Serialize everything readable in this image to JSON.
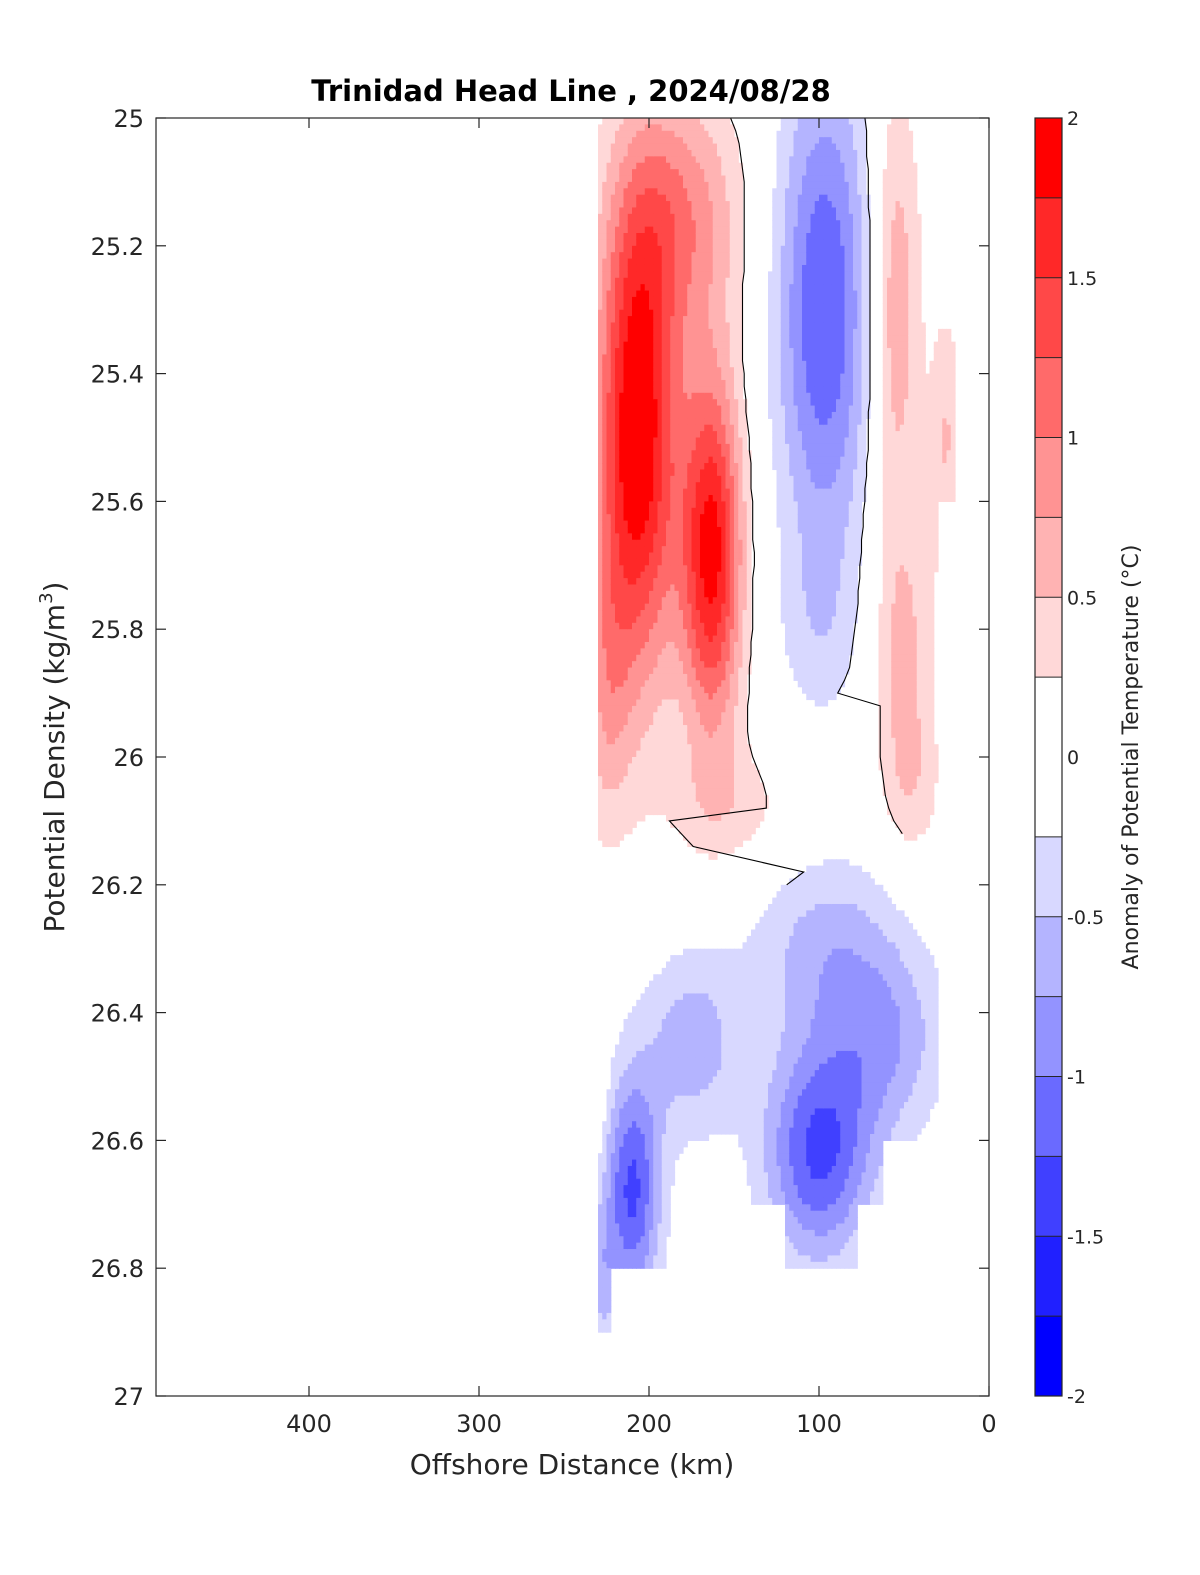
{
  "chart_data": {
    "type": "heatmap",
    "subtype": "filled-contour",
    "title": "Trinidad Head Line , 2024/08/28",
    "xlabel": "Offshore Distance (km)",
    "ylabel_main": "Potential Density (kg/m",
    "ylabel_sup": "3",
    "ylabel_close": ")",
    "xlim": [
      490,
      0
    ],
    "x_reversed": true,
    "ylim": [
      25,
      27
    ],
    "y_reversed": true,
    "xticks": [
      400,
      300,
      200,
      100,
      0
    ],
    "yticks": [
      "25",
      "25.2",
      "25.4",
      "25.6",
      "25.8",
      "26",
      "26.2",
      "26.4",
      "26.6",
      "26.8",
      "27"
    ],
    "yticks_values": [
      25,
      25.2,
      25.4,
      25.6,
      25.8,
      26,
      26.2,
      26.4,
      26.6,
      26.8,
      27
    ],
    "colorbar": {
      "label": "Anomaly of Potential Temperature (°C)",
      "range": [
        -2,
        2
      ],
      "tick_labels": [
        "2",
        "1.5",
        "1",
        "0.5",
        "0",
        "-0.5",
        "-1",
        "-1.5",
        "-2"
      ],
      "tick_values": [
        2,
        1.5,
        1,
        0.5,
        0,
        -0.5,
        -1,
        -1.5,
        -2
      ],
      "levels": [
        -2,
        -1.75,
        -1.5,
        -1.25,
        -1,
        -0.75,
        -0.5,
        -0.25,
        0.25,
        0.5,
        0.75,
        1,
        1.25,
        1.5,
        1.75,
        2
      ],
      "colors": [
        "#0000ff",
        "#2020ff",
        "#4040ff",
        "#6a6aff",
        "#9393ff",
        "#b4b4ff",
        "#d8d8ff",
        "#ffffff",
        "#ffd8d8",
        "#ffb3b3",
        "#ff9393",
        "#ff6a6a",
        "#ff4848",
        "#ff2828",
        "#ff0000"
      ]
    },
    "data_columns_km": [
      230,
      220,
      210,
      200,
      190,
      180,
      170,
      160,
      150,
      140,
      130,
      120,
      110,
      100,
      90,
      80,
      70,
      60,
      50,
      40,
      30,
      20
    ],
    "zero_contour_color": "#000000",
    "grid": false
  }
}
